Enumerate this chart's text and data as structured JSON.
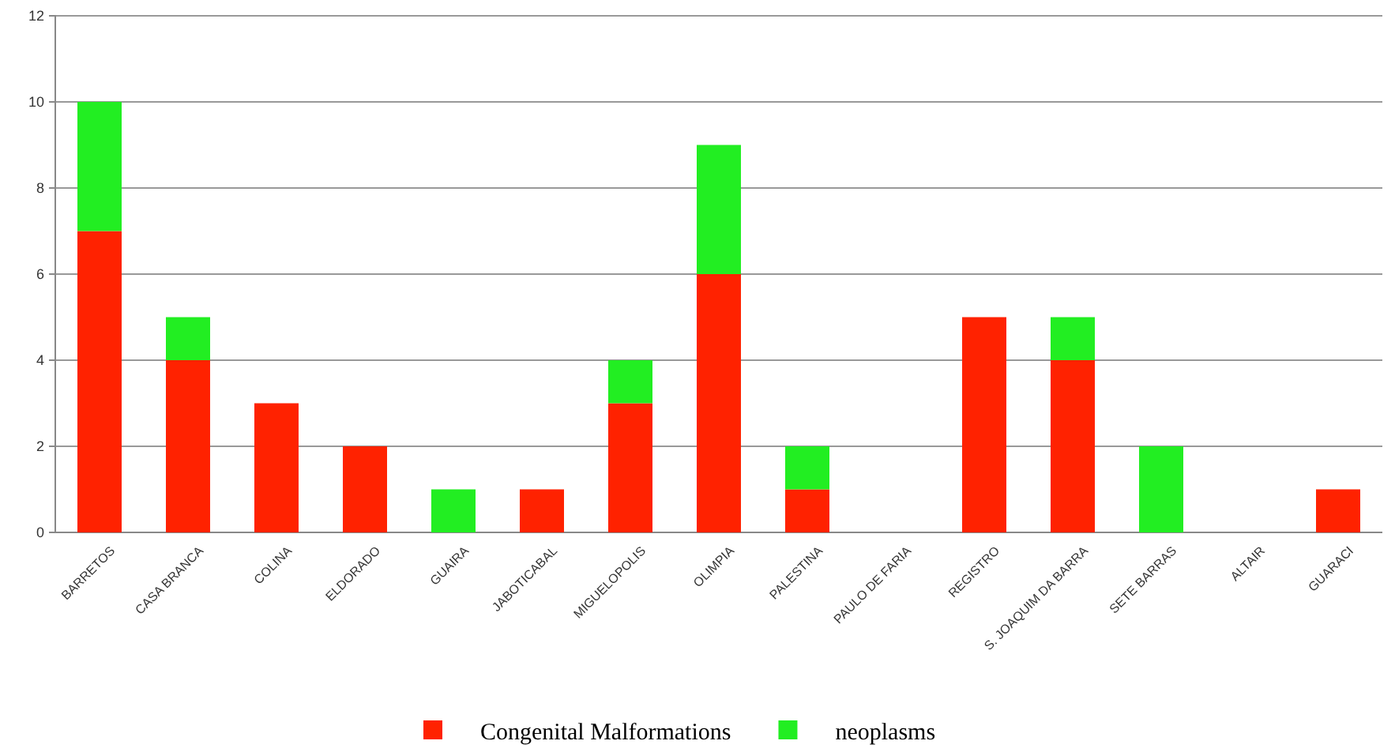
{
  "chart_data": {
    "type": "bar",
    "stacked": true,
    "categories": [
      "BARRETOS",
      "CASA BRANCA",
      "COLINA",
      "ELDORADO",
      "GUAIRA",
      "JABOTICABAL",
      "MIGUELOPOLIS",
      "OLIMPIA",
      "PALESTINA",
      "PAULO DE FARIA",
      "REGISTRO",
      "S. JOAQUIM DA BARRA",
      "SETE BARRAS",
      "ALTAIR",
      "GUARACI"
    ],
    "series": [
      {
        "name": "Congenital Malformations",
        "color": "#ff2200",
        "values": [
          7,
          4,
          3,
          2,
          0,
          1,
          3,
          6,
          1,
          0,
          5,
          4,
          0,
          0,
          1
        ]
      },
      {
        "name": "neoplasms",
        "color": "#22ee22",
        "values": [
          3,
          1,
          0,
          0,
          1,
          0,
          1,
          3,
          1,
          0,
          0,
          1,
          2,
          0,
          0
        ]
      }
    ],
    "ylim": [
      0,
      12
    ],
    "yticks": [
      0,
      2,
      4,
      6,
      8,
      10,
      12
    ],
    "grid": "y",
    "legend": "bottom"
  }
}
